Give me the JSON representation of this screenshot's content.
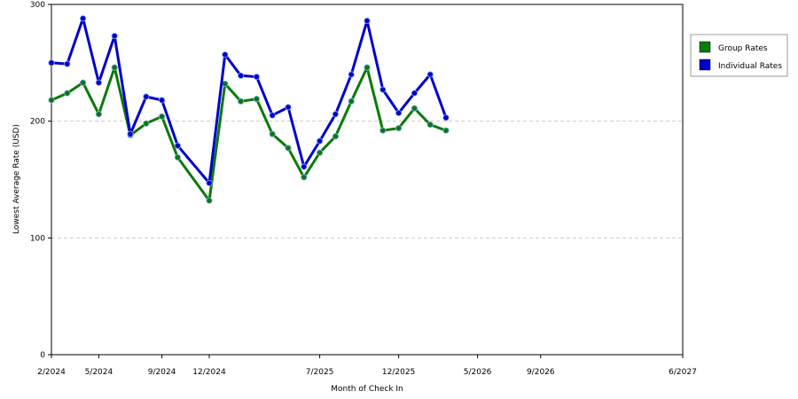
{
  "chart_data": {
    "type": "line",
    "xlabel": "Month of Check In",
    "ylabel": "Lowest Average Rate (USD)",
    "ylim": [
      0,
      300
    ],
    "yticks": [
      0,
      100,
      200,
      300
    ],
    "x": [
      "2/2024",
      "3/2024",
      "4/2024",
      "5/2024",
      "6/2024",
      "7/2024",
      "8/2024",
      "9/2024",
      "10/2024",
      "11/2024",
      "12/2024",
      "1/2025",
      "2/2025",
      "3/2025",
      "4/2025",
      "5/2025",
      "6/2025",
      "7/2025",
      "8/2025",
      "9/2025",
      "10/2025",
      "11/2025",
      "12/2025",
      "1/2026",
      "2/2026",
      "3/2026",
      "4/2026",
      "5/2026",
      "6/2026",
      "7/2026",
      "8/2026",
      "9/2026",
      "10/2026",
      "11/2026",
      "12/2026",
      "1/2027",
      "2/2027",
      "3/2027",
      "4/2027",
      "5/2027",
      "6/2027"
    ],
    "xtick_labels": [
      "2/2024",
      "5/2024",
      "9/2024",
      "12/2024",
      "7/2025",
      "12/2025",
      "5/2026",
      "9/2026",
      "6/2027"
    ],
    "grid": "horizontal dashed",
    "legend": "right",
    "series": [
      {
        "name": "Group Rates",
        "color": "#0a7a0a",
        "points": [
          [
            "2/2024",
            218
          ],
          [
            "3/2024",
            224
          ],
          [
            "4/2024",
            233
          ],
          [
            "5/2024",
            206
          ],
          [
            "6/2024",
            246
          ],
          [
            "7/2024",
            188
          ],
          [
            "8/2024",
            198
          ],
          [
            "9/2024",
            204
          ],
          [
            "10/2024",
            169
          ],
          [
            "12/2024",
            132
          ],
          [
            "1/2025",
            232
          ],
          [
            "2/2025",
            217
          ],
          [
            "3/2025",
            219
          ],
          [
            "4/2025",
            189
          ],
          [
            "5/2025",
            177
          ],
          [
            "6/2025",
            152
          ],
          [
            "7/2025",
            173
          ],
          [
            "8/2025",
            187
          ],
          [
            "9/2025",
            217
          ],
          [
            "10/2025",
            246
          ],
          [
            "11/2025",
            192
          ],
          [
            "12/2025",
            194
          ],
          [
            "1/2026",
            211
          ],
          [
            "2/2026",
            197
          ],
          [
            "3/2026",
            192
          ]
        ]
      },
      {
        "name": "Individual Rates",
        "color": "#0000cc",
        "points": [
          [
            "2/2024",
            250
          ],
          [
            "3/2024",
            249
          ],
          [
            "4/2024",
            288
          ],
          [
            "5/2024",
            233
          ],
          [
            "6/2024",
            273
          ],
          [
            "7/2024",
            189
          ],
          [
            "8/2024",
            221
          ],
          [
            "9/2024",
            218
          ],
          [
            "10/2024",
            179
          ],
          [
            "12/2024",
            147
          ],
          [
            "1/2025",
            257
          ],
          [
            "2/2025",
            239
          ],
          [
            "3/2025",
            238
          ],
          [
            "4/2025",
            205
          ],
          [
            "5/2025",
            212
          ],
          [
            "6/2025",
            161
          ],
          [
            "7/2025",
            183
          ],
          [
            "8/2025",
            206
          ],
          [
            "9/2025",
            240
          ],
          [
            "10/2025",
            286
          ],
          [
            "11/2025",
            227
          ],
          [
            "12/2025",
            207
          ],
          [
            "1/2026",
            224
          ],
          [
            "2/2026",
            240
          ],
          [
            "3/2026",
            203
          ]
        ]
      }
    ]
  }
}
